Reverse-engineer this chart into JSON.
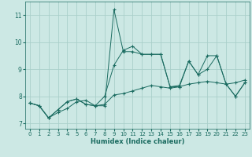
{
  "xlabel": "Humidex (Indice chaleur)",
  "xlim": [
    -0.5,
    23.5
  ],
  "ylim": [
    6.8,
    11.5
  ],
  "yticks": [
    7,
    8,
    9,
    10,
    11
  ],
  "xticks": [
    0,
    1,
    2,
    3,
    4,
    5,
    6,
    7,
    8,
    9,
    10,
    11,
    12,
    13,
    14,
    15,
    16,
    17,
    18,
    19,
    20,
    21,
    22,
    23
  ],
  "bg_color": "#cce8e4",
  "grid_color": "#aacfca",
  "line_color": "#1a6b60",
  "series": [
    [
      7.75,
      7.65,
      7.2,
      7.4,
      7.55,
      7.8,
      7.85,
      7.65,
      7.7,
      8.05,
      8.1,
      8.2,
      8.3,
      8.4,
      8.35,
      8.3,
      8.35,
      8.45,
      8.5,
      8.55,
      8.5,
      8.45,
      8.5,
      8.6
    ],
    [
      7.75,
      7.65,
      7.2,
      7.5,
      7.8,
      7.9,
      7.7,
      7.65,
      8.0,
      9.15,
      9.7,
      9.85,
      9.55,
      9.55,
      9.55,
      8.35,
      8.4,
      9.3,
      8.8,
      9.5,
      9.5,
      8.45,
      8.0,
      8.5
    ],
    [
      7.75,
      7.65,
      7.2,
      7.5,
      7.8,
      7.9,
      7.7,
      7.65,
      7.65,
      11.2,
      9.65,
      9.65,
      9.55,
      9.55,
      9.55,
      8.35,
      8.35,
      9.3,
      8.8,
      9.0,
      9.5,
      8.45,
      8.0,
      8.5
    ]
  ]
}
